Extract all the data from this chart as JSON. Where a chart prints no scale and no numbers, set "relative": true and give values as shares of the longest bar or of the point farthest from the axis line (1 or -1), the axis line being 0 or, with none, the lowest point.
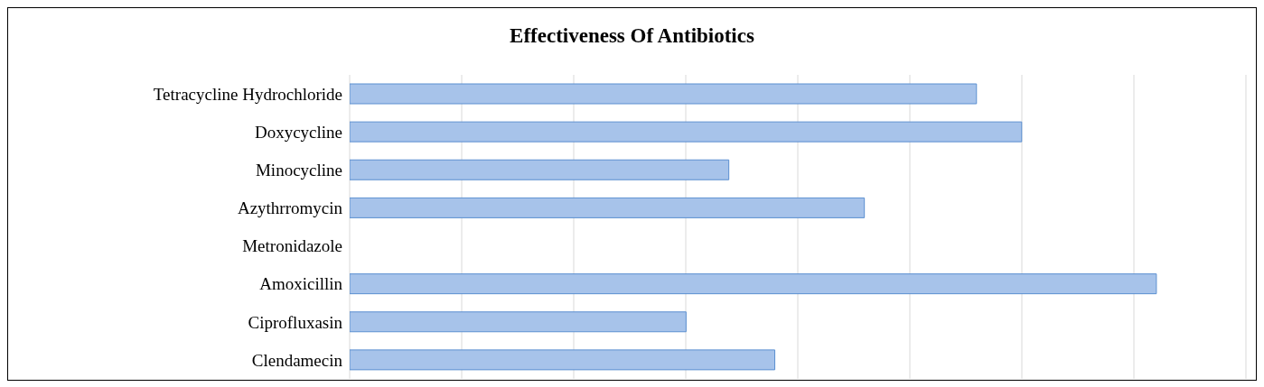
{
  "chart_data": {
    "type": "bar",
    "orientation": "horizontal",
    "relative": true,
    "title": "Effectiveness Of Antibiotics",
    "categories": [
      "Tetracycline Hydrochloride",
      "Doxycycline",
      "Minocycline",
      "Azythrromycin",
      "Metronidazole",
      "Amoxicillin",
      "Ciprofluxasin",
      "Clendamecin"
    ],
    "values": [
      0.777,
      0.833,
      0.47,
      0.638,
      0,
      1,
      0.417,
      0.527
    ],
    "color": "#a7c3ea",
    "grid": "x",
    "legend": false
  }
}
